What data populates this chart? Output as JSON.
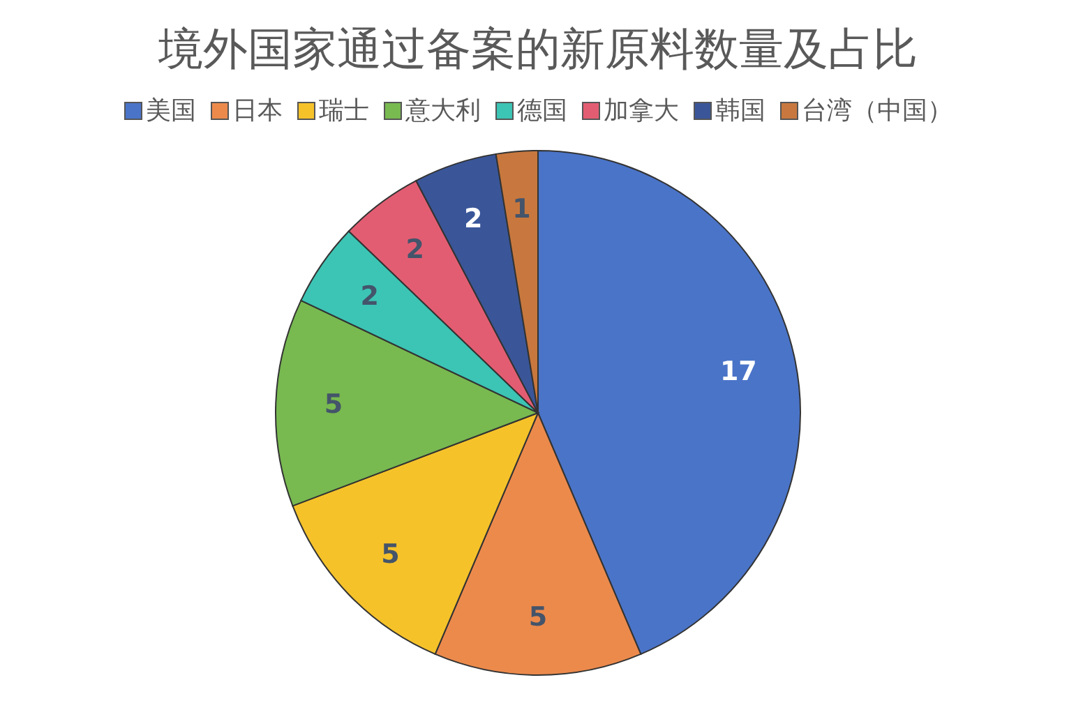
{
  "chart_data": {
    "type": "pie",
    "title": "境外国家通过备案的新原料数量及占比",
    "categories": [
      "美国",
      "日本",
      "瑞士",
      "意大利",
      "德国",
      "加拿大",
      "韩国",
      "台湾（中国）"
    ],
    "values": [
      17,
      5,
      5,
      5,
      2,
      2,
      2,
      1
    ],
    "colors": [
      "#4a74c8",
      "#ec8a4c",
      "#f5c22a",
      "#78b950",
      "#3cc4b4",
      "#e35d72",
      "#3a5699",
      "#c8783e"
    ],
    "legend": "top",
    "data_labels": true
  }
}
